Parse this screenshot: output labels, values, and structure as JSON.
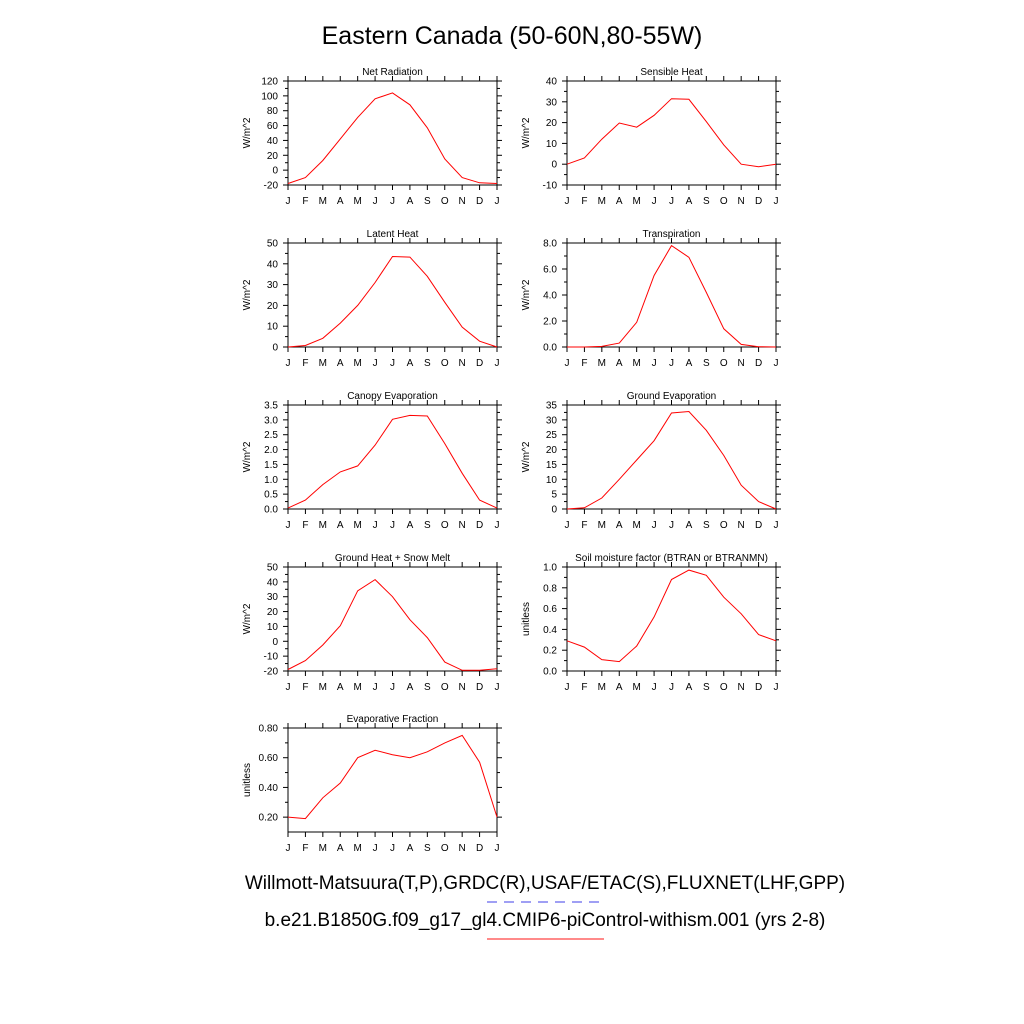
{
  "title": "Eastern Canada (50-60N,80-55W)",
  "legend": [
    {
      "text": "Willmott-Matsuura(T,P),GRDC(R),USAF/ETAC(S),FLUXNET(LHF,GPP)",
      "color": "#6666ee",
      "dash": true
    },
    {
      "text": "b.e21.B1850G.f09_g17_gl4.CMIP6-piControl-withism.001 (yrs 2-8)",
      "color": "#ff4444",
      "dash": false
    }
  ],
  "line_color": "#ff0000",
  "chart_data": [
    {
      "type": "line",
      "title": "Net Radiation",
      "ylabel": "W/m^2",
      "categories": [
        "J",
        "F",
        "M",
        "A",
        "M",
        "J",
        "J",
        "A",
        "S",
        "O",
        "N",
        "D",
        "J"
      ],
      "ylim": [
        -20,
        120
      ],
      "yticks": [
        -20,
        0,
        20,
        40,
        60,
        80,
        100,
        120
      ],
      "ytick_labels": [
        "-20",
        "0",
        "20",
        "40",
        "60",
        "80",
        "100",
        "120"
      ],
      "values": [
        -18,
        -10,
        13,
        42,
        71,
        96,
        104,
        88,
        57,
        15,
        -10,
        -17,
        -18
      ]
    },
    {
      "type": "line",
      "title": "Sensible Heat",
      "ylabel": "W/m^2",
      "categories": [
        "J",
        "F",
        "M",
        "A",
        "M",
        "J",
        "J",
        "A",
        "S",
        "O",
        "N",
        "D",
        "J"
      ],
      "ylim": [
        -10,
        40
      ],
      "yticks": [
        -10,
        0,
        10,
        20,
        30,
        40
      ],
      "ytick_labels": [
        "-10",
        "0",
        "10",
        "20",
        "30",
        "40"
      ],
      "values": [
        0,
        3,
        12,
        19.8,
        17.8,
        23.5,
        31.5,
        31.2,
        20.5,
        9.3,
        0,
        -1.2,
        0
      ]
    },
    {
      "type": "line",
      "title": "Latent Heat",
      "ylabel": "W/m^2",
      "categories": [
        "J",
        "F",
        "M",
        "A",
        "M",
        "J",
        "J",
        "A",
        "S",
        "O",
        "N",
        "D",
        "J"
      ],
      "ylim": [
        0,
        50
      ],
      "yticks": [
        0,
        10,
        20,
        30,
        40,
        50
      ],
      "ytick_labels": [
        "0",
        "10",
        "20",
        "30",
        "40",
        "50"
      ],
      "values": [
        0,
        0.7,
        4.2,
        11.5,
        20,
        31,
        43.5,
        43.2,
        34,
        21.5,
        9.5,
        2.8,
        0
      ]
    },
    {
      "type": "line",
      "title": "Transpiration",
      "ylabel": "W/m^2",
      "categories": [
        "J",
        "F",
        "M",
        "A",
        "M",
        "J",
        "J",
        "A",
        "S",
        "O",
        "N",
        "D",
        "J"
      ],
      "ylim": [
        0,
        8
      ],
      "yticks": [
        0,
        2,
        4,
        6,
        8
      ],
      "ytick_labels": [
        "0.0",
        "2.0",
        "4.0",
        "6.0",
        "8.0"
      ],
      "values": [
        0,
        0,
        0.05,
        0.3,
        1.9,
        5.5,
        7.8,
        6.9,
        4.2,
        1.4,
        0.2,
        0.02,
        0
      ]
    },
    {
      "type": "line",
      "title": "Canopy Evaporation",
      "ylabel": "W/m^2",
      "categories": [
        "J",
        "F",
        "M",
        "A",
        "M",
        "J",
        "J",
        "A",
        "S",
        "O",
        "N",
        "D",
        "J"
      ],
      "ylim": [
        0,
        3.5
      ],
      "yticks": [
        0,
        0.5,
        1,
        1.5,
        2,
        2.5,
        3,
        3.5
      ],
      "ytick_labels": [
        "0.0",
        "0.5",
        "1.0",
        "1.5",
        "2.0",
        "2.5",
        "3.0",
        "3.5"
      ],
      "values": [
        0.03,
        0.3,
        0.82,
        1.25,
        1.45,
        2.15,
        3.02,
        3.15,
        3.13,
        2.2,
        1.2,
        0.3,
        0.03
      ]
    },
    {
      "type": "line",
      "title": "Ground Evaporation",
      "ylabel": "W/m^2",
      "categories": [
        "J",
        "F",
        "M",
        "A",
        "M",
        "J",
        "J",
        "A",
        "S",
        "O",
        "N",
        "D",
        "J"
      ],
      "ylim": [
        0,
        35
      ],
      "yticks": [
        0,
        5,
        10,
        15,
        20,
        25,
        30,
        35
      ],
      "ytick_labels": [
        "0",
        "5",
        "10",
        "15",
        "20",
        "25",
        "30",
        "35"
      ],
      "values": [
        0,
        0.4,
        3.7,
        10,
        16.5,
        23,
        32.3,
        32.8,
        26.5,
        18,
        8,
        2.5,
        0
      ]
    },
    {
      "type": "line",
      "title": "Ground Heat + Snow Melt",
      "ylabel": "W/m^2",
      "categories": [
        "J",
        "F",
        "M",
        "A",
        "M",
        "J",
        "J",
        "A",
        "S",
        "O",
        "N",
        "D",
        "J"
      ],
      "ylim": [
        -20,
        50
      ],
      "yticks": [
        -20,
        -10,
        0,
        10,
        20,
        30,
        40,
        50
      ],
      "ytick_labels": [
        "-20",
        "-10",
        "0",
        "10",
        "20",
        "30",
        "40",
        "50"
      ],
      "values": [
        -19,
        -13,
        -2.5,
        10.5,
        34,
        41.5,
        30,
        14.5,
        2.5,
        -14,
        -19.5,
        -19.5,
        -18.5
      ]
    },
    {
      "type": "line",
      "title": "Soil moisture factor (BTRAN or BTRANMN)",
      "ylabel": "unitless",
      "categories": [
        "J",
        "F",
        "M",
        "A",
        "M",
        "J",
        "J",
        "A",
        "S",
        "O",
        "N",
        "D",
        "J"
      ],
      "ylim": [
        0,
        1
      ],
      "yticks": [
        0,
        0.2,
        0.4,
        0.6,
        0.8,
        1
      ],
      "ytick_labels": [
        "0.0",
        "0.2",
        "0.4",
        "0.6",
        "0.8",
        "1.0"
      ],
      "values": [
        0.29,
        0.23,
        0.11,
        0.09,
        0.24,
        0.52,
        0.88,
        0.97,
        0.92,
        0.71,
        0.55,
        0.35,
        0.29
      ]
    },
    {
      "type": "line",
      "title": "Evaporative Fraction",
      "ylabel": "unitless",
      "categories": [
        "J",
        "F",
        "M",
        "A",
        "M",
        "J",
        "J",
        "A",
        "S",
        "O",
        "N",
        "D",
        "J"
      ],
      "ylim": [
        0.1,
        0.8
      ],
      "yticks": [
        0.2,
        0.4,
        0.6,
        0.8
      ],
      "ytick_labels": [
        "0.20",
        "0.40",
        "0.60",
        "0.80"
      ],
      "values": [
        0.2,
        0.19,
        0.33,
        0.43,
        0.6,
        0.65,
        0.62,
        0.6,
        0.64,
        0.7,
        0.75,
        0.57,
        0.2
      ]
    }
  ]
}
